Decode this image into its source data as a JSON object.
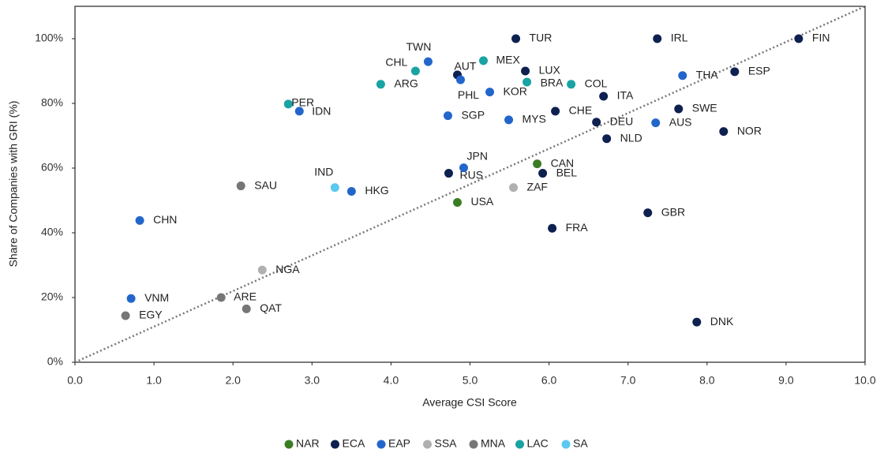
{
  "chart_data": {
    "type": "scatter",
    "x_label": "Average CSI Score",
    "y_label": "Share of Companies with GRI (%)",
    "xlim": [
      0,
      10
    ],
    "ylim": [
      0,
      110
    ],
    "xticks": [
      {
        "value": 0,
        "label": "0.0"
      },
      {
        "value": 1,
        "label": "1.0"
      },
      {
        "value": 2,
        "label": "2.0"
      },
      {
        "value": 3,
        "label": "3.0"
      },
      {
        "value": 4,
        "label": "4.0"
      },
      {
        "value": 5,
        "label": "5.0"
      },
      {
        "value": 6,
        "label": "6.0"
      },
      {
        "value": 7,
        "label": "7.0"
      },
      {
        "value": 8,
        "label": "8.0"
      },
      {
        "value": 9,
        "label": "9.0"
      },
      {
        "value": 10,
        "label": "10.0"
      }
    ],
    "yticks": [
      {
        "value": 0,
        "label": "0%"
      },
      {
        "value": 20,
        "label": "20%"
      },
      {
        "value": 40,
        "label": "40%"
      },
      {
        "value": 60,
        "label": "60%"
      },
      {
        "value": 80,
        "label": "80%"
      },
      {
        "value": 100,
        "label": "100%"
      }
    ],
    "legend": "bottom",
    "series": [
      {
        "name": "NAR",
        "color": "#3b7d23",
        "labels": [
          "CAN",
          "USA"
        ],
        "x": [
          5.85,
          4.84
        ],
        "values": [
          61.3,
          49.4
        ]
      },
      {
        "name": "ECA",
        "color": "#0e2050",
        "labels": [
          "TUR",
          "IRL",
          "FIN",
          "AUT",
          "LUX",
          "ESP",
          "ITA",
          "SWE",
          "CHE",
          "DEU",
          "NOR",
          "NLD",
          "RUS",
          "BEL",
          "GBR",
          "FRA",
          "DNK"
        ],
        "x": [
          5.58,
          7.37,
          9.16,
          4.84,
          5.7,
          8.35,
          6.69,
          7.64,
          6.08,
          6.6,
          8.21,
          6.73,
          4.73,
          5.92,
          7.25,
          6.04,
          7.87
        ],
        "values": [
          100,
          100,
          100,
          88.8,
          90.0,
          89.8,
          82.2,
          78.3,
          77.6,
          74.2,
          71.3,
          69.1,
          58.4,
          58.4,
          46.2,
          41.4,
          12.4
        ]
      },
      {
        "name": "EAP",
        "color": "#2266cc",
        "labels": [
          "TWN",
          "PHL",
          "THA",
          "KOR",
          "IDN",
          "SGP",
          "MYS",
          "AUS",
          "JPN",
          "HKG",
          "CHN",
          "VNM"
        ],
        "x": [
          4.47,
          4.88,
          7.69,
          5.25,
          2.84,
          4.72,
          5.49,
          7.35,
          4.92,
          3.5,
          0.82,
          0.71
        ],
        "values": [
          92.9,
          87.3,
          88.6,
          83.5,
          77.6,
          76.2,
          74.9,
          74.0,
          60.1,
          52.8,
          43.8,
          19.7
        ]
      },
      {
        "name": "SSA",
        "color": "#b0b0b0",
        "labels": [
          "ZAF",
          "NGA"
        ],
        "x": [
          5.55,
          2.37
        ],
        "values": [
          54.0,
          28.5
        ]
      },
      {
        "name": "MNA",
        "color": "#767676",
        "labels": [
          "SAU",
          "ARE",
          "QAT",
          "EGY"
        ],
        "x": [
          2.1,
          1.85,
          2.17,
          0.64
        ],
        "values": [
          54.5,
          20.0,
          16.5,
          14.4
        ]
      },
      {
        "name": "LAC",
        "color": "#19a3a3",
        "labels": [
          "MEX",
          "CHL",
          "ARG",
          "BRA",
          "COL",
          "PER"
        ],
        "x": [
          5.17,
          4.31,
          3.87,
          5.72,
          6.28,
          2.7
        ],
        "values": [
          93.2,
          90.0,
          85.9,
          86.6,
          85.9,
          79.8
        ]
      },
      {
        "name": "SA",
        "color": "#5bc8f0",
        "labels": [
          "IND"
        ],
        "x": [
          3.29
        ],
        "values": [
          54.0
        ]
      }
    ]
  }
}
